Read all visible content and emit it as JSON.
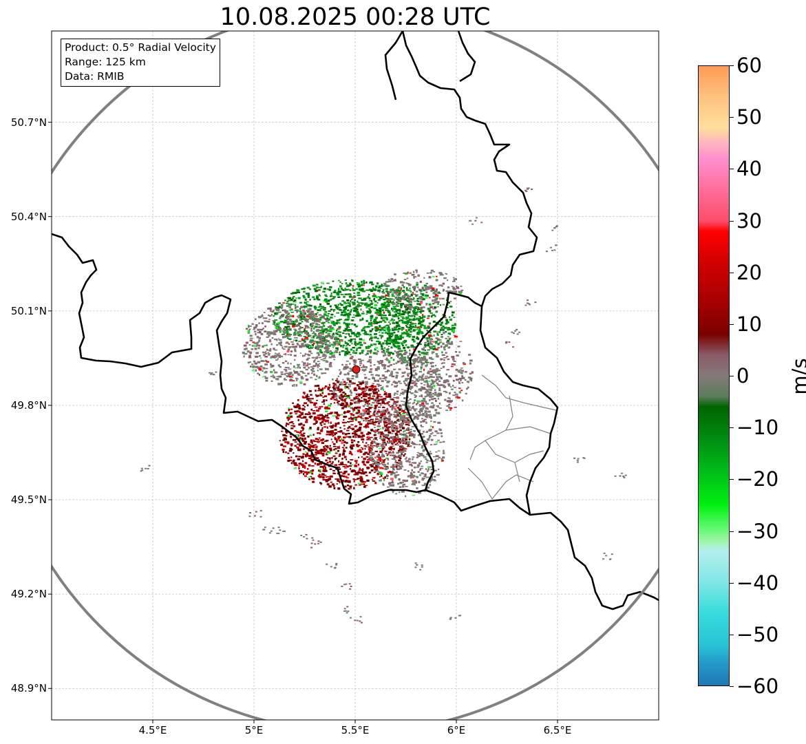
{
  "title": "10.08.2025 00:28 UTC",
  "info_box": {
    "product": "Product: 0.5° Radial Velocity",
    "range": "Range: 125 km",
    "source": "Data: RMIB"
  },
  "map": {
    "lon_range": [
      4.0,
      7.0
    ],
    "lat_range": [
      48.8,
      50.99
    ],
    "radar_site": {
      "lon": 5.505,
      "lat": 49.914,
      "color": "#e31a1c"
    },
    "range_ring_km": 125,
    "ring_color": "#808080",
    "border_color": "#000000",
    "region_border_color": "#808080",
    "grid": true,
    "lat_ticks": [
      "50.7°N",
      "50.4°N",
      "50.1°N",
      "49.8°N",
      "49.5°N",
      "49.2°N",
      "48.9°N"
    ],
    "lon_ticks": [
      "4.5°E",
      "5°E",
      "5.5°E",
      "6°E",
      "6.5°E"
    ],
    "lat_values": [
      50.7,
      50.4,
      50.1,
      49.8,
      49.5,
      49.2,
      48.9
    ],
    "lon_values": [
      4.5,
      5.0,
      5.5,
      6.0,
      6.5
    ]
  },
  "colorbar": {
    "min": -60,
    "max": 60,
    "unit": "m/s",
    "tick_labels": [
      "60",
      "50",
      "40",
      "30",
      "20",
      "10",
      "0",
      "−10",
      "−20",
      "−30",
      "−40",
      "−50",
      "−60"
    ],
    "tick_values": [
      60,
      50,
      40,
      30,
      20,
      10,
      0,
      -10,
      -20,
      -30,
      -40,
      -50,
      -60
    ],
    "stops": [
      {
        "v": -60,
        "c": "#1f77b4"
      },
      {
        "v": -56,
        "c": "#2496c8"
      },
      {
        "v": -52,
        "c": "#29c4d6"
      },
      {
        "v": -46,
        "c": "#36dcdc"
      },
      {
        "v": -40,
        "c": "#80e6e6"
      },
      {
        "v": -34,
        "c": "#b5eeee"
      },
      {
        "v": -32,
        "c": "#9ff5a9"
      },
      {
        "v": -29,
        "c": "#55f865"
      },
      {
        "v": -25,
        "c": "#00f010"
      },
      {
        "v": -18,
        "c": "#00b818"
      },
      {
        "v": -12,
        "c": "#008b10"
      },
      {
        "v": -6,
        "c": "#006400"
      },
      {
        "v": -4,
        "c": "#5a7d5a"
      },
      {
        "v": 0,
        "c": "#857a79"
      },
      {
        "v": 4,
        "c": "#8a5b68"
      },
      {
        "v": 8,
        "c": "#7a0000"
      },
      {
        "v": 14,
        "c": "#a50000"
      },
      {
        "v": 22,
        "c": "#d10000"
      },
      {
        "v": 28,
        "c": "#ff0000"
      },
      {
        "v": 30,
        "c": "#ff4d6a"
      },
      {
        "v": 36,
        "c": "#ff6d9a"
      },
      {
        "v": 42,
        "c": "#ff8ed0"
      },
      {
        "v": 45,
        "c": "#ffb3c1"
      },
      {
        "v": 48,
        "c": "#ffe09e"
      },
      {
        "v": 54,
        "c": "#ffc27f"
      },
      {
        "v": 60,
        "c": "#ff9a55"
      }
    ]
  }
}
